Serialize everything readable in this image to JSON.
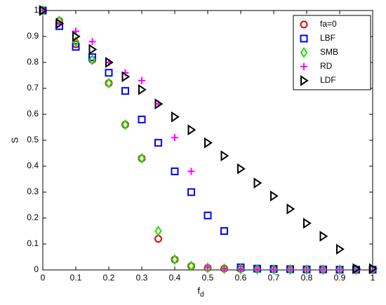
{
  "chart_data": {
    "type": "scatter",
    "xlabel": "f",
    "xlabel_sub": "d",
    "ylabel": "S",
    "x": [
      0,
      0.05,
      0.1,
      0.15,
      0.2,
      0.25,
      0.3,
      0.35,
      0.4,
      0.45,
      0.5,
      0.55,
      0.6,
      0.65,
      0.7,
      0.75,
      0.8,
      0.85,
      0.9,
      0.95,
      1
    ],
    "xlim": [
      0,
      1
    ],
    "ylim": [
      0,
      1
    ],
    "xticks": [
      0,
      0.1,
      0.2,
      0.3,
      0.4,
      0.5,
      0.6,
      0.7,
      0.8,
      0.9,
      1
    ],
    "yticks": [
      0,
      0.1,
      0.2,
      0.3,
      0.4,
      0.5,
      0.6,
      0.7,
      0.8,
      0.9,
      1
    ],
    "legend": "upper right",
    "series": [
      {
        "name": "fa=0",
        "color": "#e00000",
        "marker": "circle",
        "values": [
          1,
          0.96,
          0.87,
          0.81,
          0.72,
          0.56,
          0.43,
          0.12,
          0.04,
          0.015,
          0.008,
          0.005,
          0.004,
          0.003,
          0.002,
          0.002,
          0.001,
          0.001,
          0.001,
          0.001,
          0.001
        ]
      },
      {
        "name": "LBF",
        "color": "#0000ff",
        "marker": "square",
        "values": [
          1,
          0.94,
          0.86,
          0.82,
          0.76,
          0.69,
          0.58,
          0.49,
          0.38,
          0.3,
          0.21,
          0.15,
          0.01,
          0.005,
          0.004,
          0.003,
          0.002,
          0.002,
          0.001,
          0.001,
          0.001
        ]
      },
      {
        "name": "SMB",
        "color": "#22dd00",
        "marker": "diamond",
        "values": [
          1,
          0.96,
          0.88,
          0.81,
          0.72,
          0.56,
          0.43,
          0.15,
          0.04,
          0.015,
          0.008,
          0.005,
          0.004,
          0.003,
          0.002,
          0.002,
          0.001,
          0.001,
          0.001,
          0.001,
          0.001
        ]
      },
      {
        "name": "RD",
        "color": "#ff00ff",
        "marker": "plus",
        "values": [
          1,
          0.95,
          0.92,
          0.88,
          0.8,
          0.76,
          0.73,
          0.64,
          0.51,
          0.38,
          0.01,
          0.005,
          0.004,
          0.003,
          0.002,
          0.002,
          0.001,
          0.001,
          0.001,
          0.001,
          0.001
        ]
      },
      {
        "name": "LDF",
        "color": "#000000",
        "marker": "triangle-right",
        "values": [
          1,
          0.95,
          0.9,
          0.85,
          0.8,
          0.745,
          0.695,
          0.64,
          0.59,
          0.54,
          0.49,
          0.44,
          0.39,
          0.335,
          0.285,
          0.235,
          0.18,
          0.13,
          0.08,
          0.005,
          0.005
        ]
      }
    ]
  }
}
